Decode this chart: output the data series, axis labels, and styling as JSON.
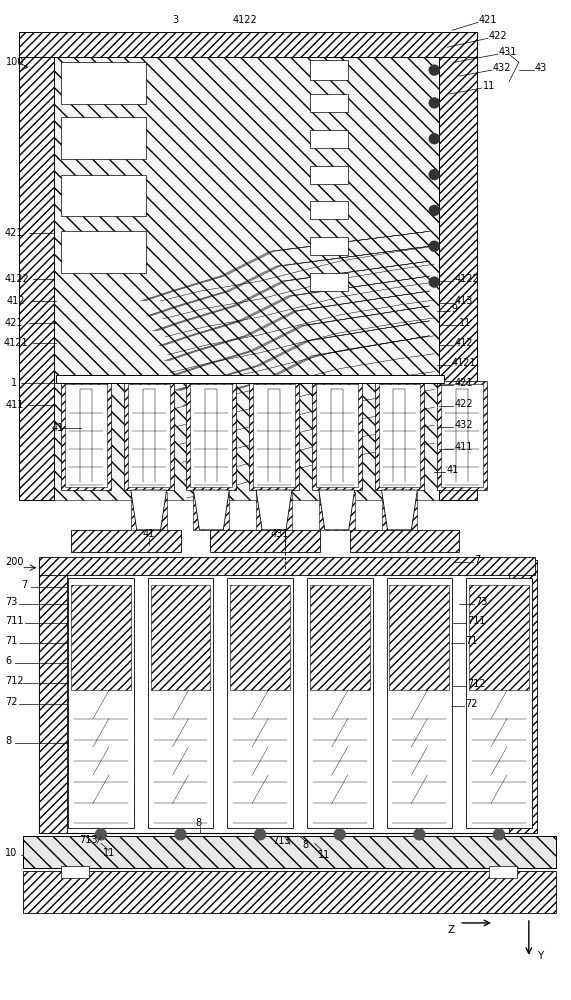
{
  "bg_color": "#ffffff",
  "line_color": "#000000",
  "fig_width": 5.71,
  "fig_height": 10.0,
  "dpi": 100
}
